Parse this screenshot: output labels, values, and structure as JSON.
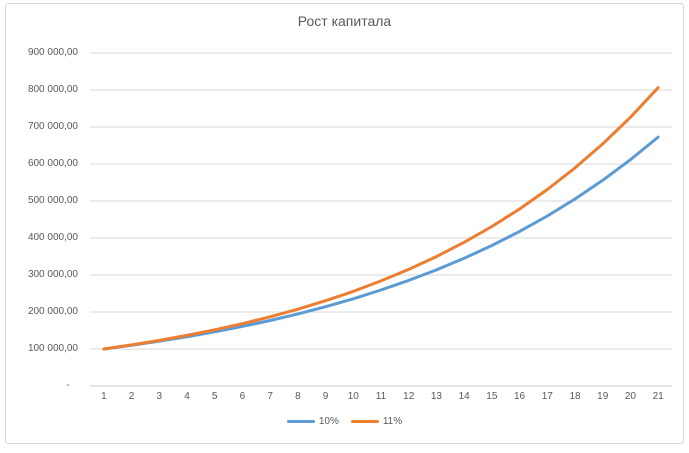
{
  "chart_data": {
    "type": "line",
    "title": "Рост капитала",
    "xlabel": "",
    "ylabel": "",
    "x": [
      1,
      2,
      3,
      4,
      5,
      6,
      7,
      8,
      9,
      10,
      11,
      12,
      13,
      14,
      15,
      16,
      17,
      18,
      19,
      20,
      21
    ],
    "ylim": [
      0,
      900000
    ],
    "ytick_interval": 100000,
    "ytick_labels": [
      "-   ",
      "100 000,00",
      "200 000,00",
      "300 000,00",
      "400 000,00",
      "500 000,00",
      "600 000,00",
      "700 000,00",
      "800 000,00",
      "900 000,00"
    ],
    "grid": true,
    "legend_position": "bottom",
    "series": [
      {
        "name": "10%",
        "color": "#5B9BD5",
        "values": [
          100000,
          110000,
          121000,
          133100,
          146410,
          161051,
          177156.1,
          194871.71,
          214358.88,
          235794.77,
          259374.25,
          285311.67,
          313842.84,
          345227.12,
          379749.83,
          417724.82,
          459497.3,
          505447.03,
          555991.73,
          611590.9,
          672749.99
        ]
      },
      {
        "name": "11%",
        "color": "#ED7D31",
        "values": [
          100000,
          111000,
          123210,
          136763.1,
          151807.04,
          168505.82,
          187041.46,
          207616.02,
          230453.78,
          255803.69,
          283942.1,
          315175.73,
          349845.06,
          388327.22,
          431043.21,
          478457.96,
          531088.34,
          589508.06,
          654353.95,
          726332.88,
          806229.5
        ]
      }
    ]
  },
  "colors": {
    "grid": "#D9D9D9",
    "axis": "#C9C9C9",
    "text": "#595959",
    "frame_border": "#D9D9D9",
    "background": "#FFFFFF"
  }
}
